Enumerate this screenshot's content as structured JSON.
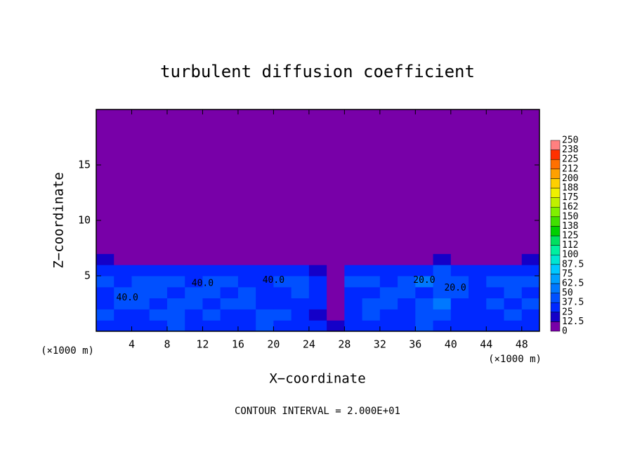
{
  "chart_data": {
    "type": "heatmap",
    "title": "turbulent diffusion coefficient",
    "x_label": "X−coordinate",
    "y_label": "Z−coordinate",
    "x_unit": "(×1000 m)",
    "x_unit_right": "(×1000 m)",
    "footer": "CONTOUR INTERVAL = 2.000E+01",
    "annotations": [
      "40.0",
      "40.0",
      "40.0",
      "20.0",
      "20.0"
    ],
    "xlim": [
      0,
      50
    ],
    "ylim": [
      0,
      20
    ],
    "xticks": [
      4,
      8,
      12,
      16,
      20,
      24,
      28,
      32,
      36,
      40,
      44,
      48
    ],
    "yticks": [
      5,
      10,
      15
    ],
    "x_edges": [
      0,
      2,
      4,
      6,
      8,
      10,
      12,
      14,
      16,
      18,
      20,
      22,
      24,
      26,
      28,
      30,
      32,
      34,
      36,
      38,
      40,
      42,
      44,
      46,
      48,
      50
    ],
    "z_edges": [
      0,
      1,
      2,
      3,
      4,
      5,
      6,
      7,
      20
    ],
    "z": [
      [
        30,
        35,
        25,
        30,
        40,
        35,
        30,
        25,
        30,
        40,
        35,
        30,
        25,
        15,
        30,
        35,
        30,
        25,
        40,
        35,
        30,
        25,
        30,
        35,
        30
      ],
      [
        40,
        35,
        30,
        45,
        40,
        30,
        40,
        35,
        30,
        45,
        40,
        30,
        20,
        10,
        35,
        40,
        35,
        30,
        45,
        40,
        35,
        30,
        35,
        40,
        35
      ],
      [
        35,
        45,
        40,
        35,
        40,
        45,
        35,
        40,
        45,
        30,
        25,
        35,
        30,
        10,
        30,
        40,
        45,
        35,
        40,
        50,
        35,
        30,
        40,
        35,
        40
      ],
      [
        30,
        40,
        45,
        40,
        35,
        40,
        45,
        35,
        40,
        30,
        25,
        40,
        35,
        10,
        35,
        30,
        40,
        45,
        35,
        40,
        45,
        35,
        30,
        40,
        35
      ],
      [
        40,
        35,
        40,
        45,
        40,
        35,
        40,
        45,
        30,
        35,
        40,
        45,
        30,
        5,
        40,
        45,
        35,
        40,
        50,
        45,
        40,
        35,
        45,
        40,
        45
      ],
      [
        35,
        30,
        25,
        30,
        30,
        25,
        30,
        35,
        25,
        30,
        35,
        30,
        20,
        5,
        30,
        35,
        30,
        25,
        35,
        40,
        30,
        25,
        30,
        35,
        30
      ],
      [
        15,
        10,
        5,
        5,
        5,
        5,
        10,
        10,
        5,
        5,
        10,
        5,
        0,
        0,
        5,
        5,
        5,
        5,
        10,
        15,
        5,
        5,
        5,
        5,
        15
      ],
      [
        0,
        0,
        0,
        0,
        0,
        0,
        0,
        0,
        0,
        0,
        0,
        0,
        0,
        0,
        0,
        0,
        0,
        0,
        0,
        0,
        0,
        0,
        0,
        0,
        0
      ]
    ],
    "colorbar_ticks": [
      0,
      12.5,
      25,
      37.5,
      50,
      62.5,
      75,
      87.5,
      100,
      {
        "value": 112.5,
        "label": "112"
      },
      125,
      {
        "value": 137.5,
        "label": "138"
      },
      150,
      {
        "value": 162.5,
        "label": "162"
      },
      175,
      {
        "value": 187.5,
        "label": "188"
      },
      200,
      {
        "value": 212.5,
        "label": "212"
      },
      225,
      {
        "value": 237.5,
        "label": "238"
      },
      250
    ],
    "colors": [
      "#7800a8",
      "#1400c8",
      "#0028ff",
      "#0050ff",
      "#0078ff",
      "#00a0ff",
      "#00c8ff",
      "#00e6d2",
      "#00f0a0",
      "#00e060",
      "#00d000",
      "#40e000",
      "#80f000",
      "#c0f000",
      "#f0f000",
      "#ffd000",
      "#ffa000",
      "#ff7000",
      "#ff3000",
      "#ff8080"
    ]
  }
}
